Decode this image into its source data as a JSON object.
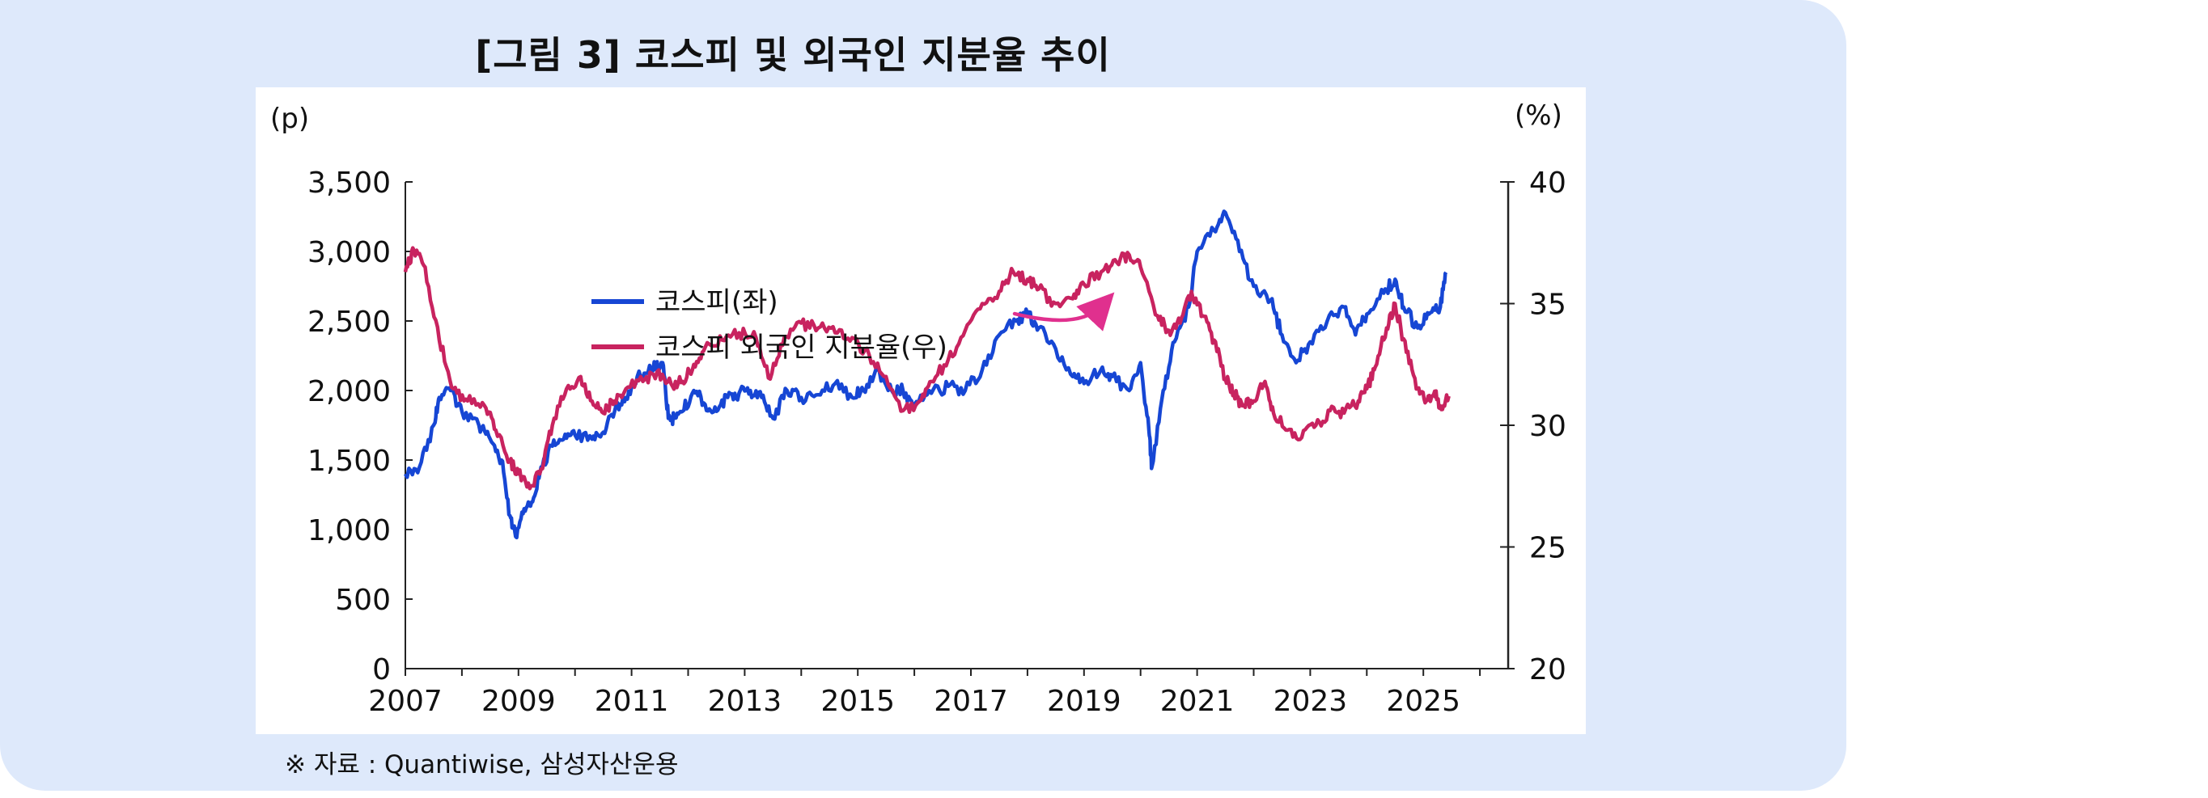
{
  "title": "[그림 3] 코스피 및 외국인 지분율 추이",
  "source": "※ 자료 : Quantiwise, 삼성자산운용",
  "chart_data": {
    "type": "line",
    "left_unit": "(p)",
    "right_unit": "(%)",
    "x_ticks": [
      "2007",
      "2009",
      "2011",
      "2013",
      "2015",
      "2017",
      "2019",
      "2021",
      "2023",
      "2025"
    ],
    "x_range": [
      2007,
      2027
    ],
    "ylim_left": [
      0,
      3500
    ],
    "left_ticks": [
      "3,500",
      "3,000",
      "2,500",
      "2,000",
      "1,500",
      "1,000",
      "500",
      "0"
    ],
    "left_tick_values": [
      3500,
      3000,
      2500,
      2000,
      1500,
      1000,
      500,
      0
    ],
    "ylim_right": [
      20,
      40
    ],
    "right_ticks": [
      "40",
      "35",
      "30",
      "25",
      "20"
    ],
    "right_tick_values": [
      40,
      35,
      30,
      25,
      20
    ],
    "grid": false,
    "legend_position": "center-left",
    "annotation": "upward curved arrow (pink) at right, indicating rising foreign ownership",
    "colors": {
      "kospi": "#1646d4",
      "foreign": "#c8235f",
      "arrow": "#e0308e",
      "panel": "#dee9fb"
    },
    "series": [
      {
        "name": "코스피(좌)",
        "axis": "left",
        "color": "#1646d4",
        "points": [
          [
            2007.0,
            1400
          ],
          [
            2007.25,
            1450
          ],
          [
            2007.5,
            1750
          ],
          [
            2007.6,
            1950
          ],
          [
            2007.8,
            2000
          ],
          [
            2008.0,
            1850
          ],
          [
            2008.3,
            1750
          ],
          [
            2008.5,
            1650
          ],
          [
            2008.7,
            1500
          ],
          [
            2008.85,
            1100
          ],
          [
            2008.95,
            950
          ],
          [
            2009.1,
            1150
          ],
          [
            2009.25,
            1200
          ],
          [
            2009.4,
            1450
          ],
          [
            2009.6,
            1600
          ],
          [
            2009.8,
            1650
          ],
          [
            2010.0,
            1680
          ],
          [
            2010.3,
            1650
          ],
          [
            2010.5,
            1700
          ],
          [
            2010.7,
            1850
          ],
          [
            2010.9,
            1950
          ],
          [
            2011.1,
            2100
          ],
          [
            2011.35,
            2150
          ],
          [
            2011.55,
            2200
          ],
          [
            2011.65,
            1800
          ],
          [
            2011.75,
            1800
          ],
          [
            2011.9,
            1850
          ],
          [
            2012.1,
            2000
          ],
          [
            2012.3,
            1900
          ],
          [
            2012.5,
            1850
          ],
          [
            2012.7,
            1950
          ],
          [
            2012.9,
            1980
          ],
          [
            2013.1,
            2000
          ],
          [
            2013.3,
            1950
          ],
          [
            2013.5,
            1800
          ],
          [
            2013.75,
            2000
          ],
          [
            2014.0,
            1950
          ],
          [
            2014.3,
            1970
          ],
          [
            2014.6,
            2050
          ],
          [
            2014.9,
            1950
          ],
          [
            2015.1,
            2000
          ],
          [
            2015.35,
            2150
          ],
          [
            2015.6,
            2000
          ],
          [
            2015.8,
            2000
          ],
          [
            2016.0,
            1900
          ],
          [
            2016.3,
            1980
          ],
          [
            2016.6,
            2030
          ],
          [
            2016.9,
            2000
          ],
          [
            2017.2,
            2150
          ],
          [
            2017.5,
            2400
          ],
          [
            2017.8,
            2500
          ],
          [
            2018.0,
            2550
          ],
          [
            2018.2,
            2450
          ],
          [
            2018.5,
            2300
          ],
          [
            2018.8,
            2100
          ],
          [
            2019.0,
            2050
          ],
          [
            2019.3,
            2150
          ],
          [
            2019.5,
            2100
          ],
          [
            2019.8,
            2000
          ],
          [
            2020.0,
            2200
          ],
          [
            2020.15,
            1700
          ],
          [
            2020.2,
            1450
          ],
          [
            2020.4,
            2000
          ],
          [
            2020.6,
            2350
          ],
          [
            2020.85,
            2600
          ],
          [
            2021.0,
            3000
          ],
          [
            2021.3,
            3150
          ],
          [
            2021.5,
            3280
          ],
          [
            2021.75,
            3000
          ],
          [
            2022.0,
            2750
          ],
          [
            2022.3,
            2650
          ],
          [
            2022.5,
            2400
          ],
          [
            2022.75,
            2200
          ],
          [
            2023.0,
            2350
          ],
          [
            2023.3,
            2500
          ],
          [
            2023.6,
            2600
          ],
          [
            2023.8,
            2400
          ],
          [
            2024.0,
            2550
          ],
          [
            2024.3,
            2700
          ],
          [
            2024.5,
            2800
          ],
          [
            2024.65,
            2600
          ],
          [
            2024.9,
            2450
          ],
          [
            2025.1,
            2550
          ],
          [
            2025.3,
            2600
          ],
          [
            2025.4,
            2850
          ]
        ]
      },
      {
        "name": "코스피 외국인 지분율(우)",
        "axis": "right",
        "color": "#c8235f",
        "points": [
          [
            2007.0,
            36.3
          ],
          [
            2007.15,
            37.2
          ],
          [
            2007.35,
            36.5
          ],
          [
            2007.6,
            33.5
          ],
          [
            2007.85,
            31.5
          ],
          [
            2008.1,
            31.0
          ],
          [
            2008.4,
            30.8
          ],
          [
            2008.6,
            29.8
          ],
          [
            2008.85,
            28.5
          ],
          [
            2009.0,
            28.0
          ],
          [
            2009.2,
            27.4
          ],
          [
            2009.4,
            28.2
          ],
          [
            2009.6,
            30.0
          ],
          [
            2009.85,
            31.5
          ],
          [
            2010.1,
            32.0
          ],
          [
            2010.3,
            31.0
          ],
          [
            2010.5,
            30.5
          ],
          [
            2010.7,
            31.0
          ],
          [
            2010.9,
            31.5
          ],
          [
            2011.2,
            31.8
          ],
          [
            2011.45,
            32.2
          ],
          [
            2011.7,
            31.7
          ],
          [
            2011.9,
            31.8
          ],
          [
            2012.1,
            32.5
          ],
          [
            2012.3,
            33.2
          ],
          [
            2012.6,
            33.5
          ],
          [
            2012.9,
            33.8
          ],
          [
            2013.2,
            33.6
          ],
          [
            2013.45,
            31.9
          ],
          [
            2013.7,
            33.6
          ],
          [
            2014.0,
            34.2
          ],
          [
            2014.3,
            34.0
          ],
          [
            2014.6,
            33.8
          ],
          [
            2014.9,
            33.6
          ],
          [
            2015.2,
            32.9
          ],
          [
            2015.5,
            32.0
          ],
          [
            2015.8,
            30.6
          ],
          [
            2016.1,
            31.0
          ],
          [
            2016.3,
            31.8
          ],
          [
            2016.6,
            32.7
          ],
          [
            2016.9,
            33.9
          ],
          [
            2017.2,
            35.0
          ],
          [
            2017.5,
            35.5
          ],
          [
            2017.75,
            36.3
          ],
          [
            2018.0,
            36.0
          ],
          [
            2018.2,
            35.6
          ],
          [
            2018.5,
            35.0
          ],
          [
            2018.8,
            35.2
          ],
          [
            2019.0,
            35.8
          ],
          [
            2019.3,
            36.3
          ],
          [
            2019.55,
            36.8
          ],
          [
            2019.8,
            37.0
          ],
          [
            2020.0,
            36.5
          ],
          [
            2020.3,
            34.5
          ],
          [
            2020.5,
            33.9
          ],
          [
            2020.7,
            34.2
          ],
          [
            2020.9,
            35.5
          ],
          [
            2021.1,
            34.5
          ],
          [
            2021.3,
            33.5
          ],
          [
            2021.5,
            31.9
          ],
          [
            2021.65,
            31.3
          ],
          [
            2021.8,
            30.8
          ],
          [
            2022.0,
            31.0
          ],
          [
            2022.2,
            31.8
          ],
          [
            2022.35,
            30.5
          ],
          [
            2022.6,
            29.8
          ],
          [
            2022.85,
            29.5
          ],
          [
            2023.1,
            30.0
          ],
          [
            2023.35,
            30.6
          ],
          [
            2023.6,
            30.5
          ],
          [
            2023.85,
            31.0
          ],
          [
            2024.0,
            31.5
          ],
          [
            2024.15,
            32.4
          ],
          [
            2024.35,
            34.0
          ],
          [
            2024.5,
            35.0
          ],
          [
            2024.7,
            33.0
          ],
          [
            2024.9,
            31.5
          ],
          [
            2025.05,
            31.0
          ],
          [
            2025.2,
            31.4
          ],
          [
            2025.3,
            30.8
          ],
          [
            2025.45,
            31.2
          ]
        ]
      }
    ]
  }
}
